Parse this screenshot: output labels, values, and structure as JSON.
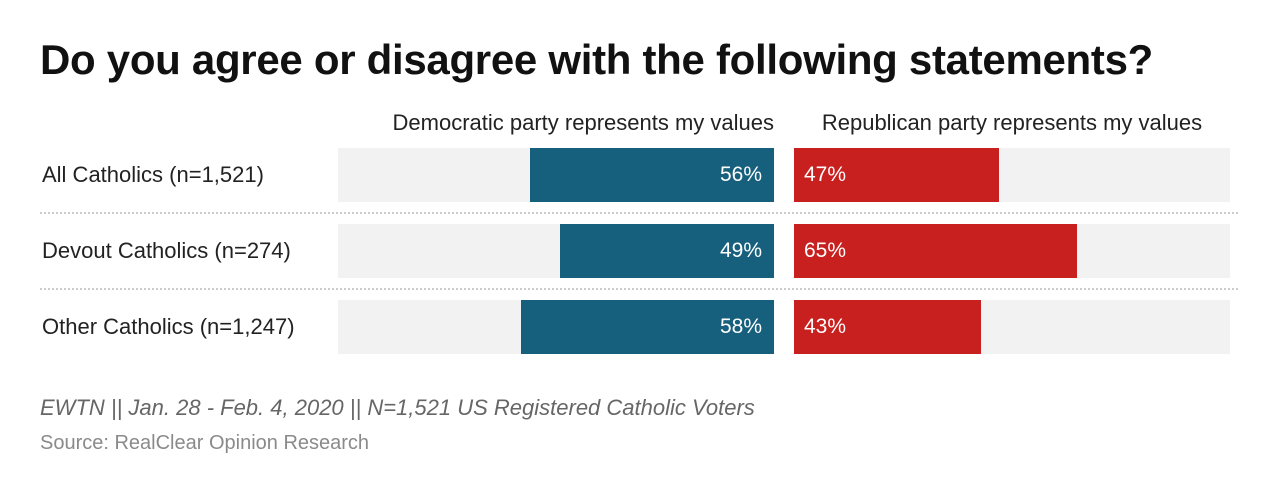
{
  "chart_data": {
    "type": "bar",
    "title": "Do you agree or disagree with the following statements?",
    "categories": [
      "All Catholics (n=1,521)",
      "Devout Catholics (n=274)",
      "Other Catholics (n=1,247)"
    ],
    "series": [
      {
        "name": "Democratic party represents my values",
        "values": [
          56,
          49,
          58
        ],
        "labels": [
          "56%",
          "49%",
          "58%"
        ],
        "color": "#17607d"
      },
      {
        "name": "Republican party represents my values",
        "values": [
          47,
          65,
          43
        ],
        "labels": [
          "47%",
          "65%",
          "43%"
        ],
        "color": "#c8201e"
      }
    ],
    "xlim": [
      0,
      100
    ],
    "unit": "%",
    "track_color": "#f2f2f2",
    "legend": "column headers above bars"
  },
  "footer": {
    "note": "EWTN || Jan. 28 - Feb. 4, 2020 || N=1,521 US Registered Catholic Voters",
    "source": "Source: RealClear Opinion Research"
  }
}
